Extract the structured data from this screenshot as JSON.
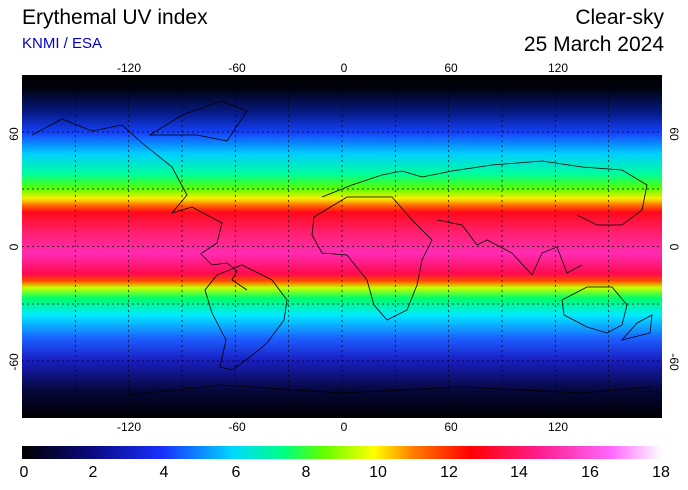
{
  "header": {
    "title": "Erythemal UV index",
    "credit": "KNMI / ESA",
    "sky": "Clear-sky",
    "date": "25 March 2024"
  },
  "map": {
    "projection": "equirectangular",
    "longitude_ticks": [
      "-120",
      "-60",
      "0",
      "60",
      "120"
    ],
    "latitude_ticks": [
      "60",
      "0",
      "-60"
    ],
    "grid": "dashed black lines every 30 degrees",
    "field": "clear-sky erythemal UV index (highest along the equatorial belt, about 14-16)"
  },
  "colorbar": {
    "ticks": [
      "0",
      "2",
      "4",
      "6",
      "8",
      "10",
      "12",
      "14",
      "16",
      "18"
    ],
    "range": [
      0,
      18
    ]
  }
}
